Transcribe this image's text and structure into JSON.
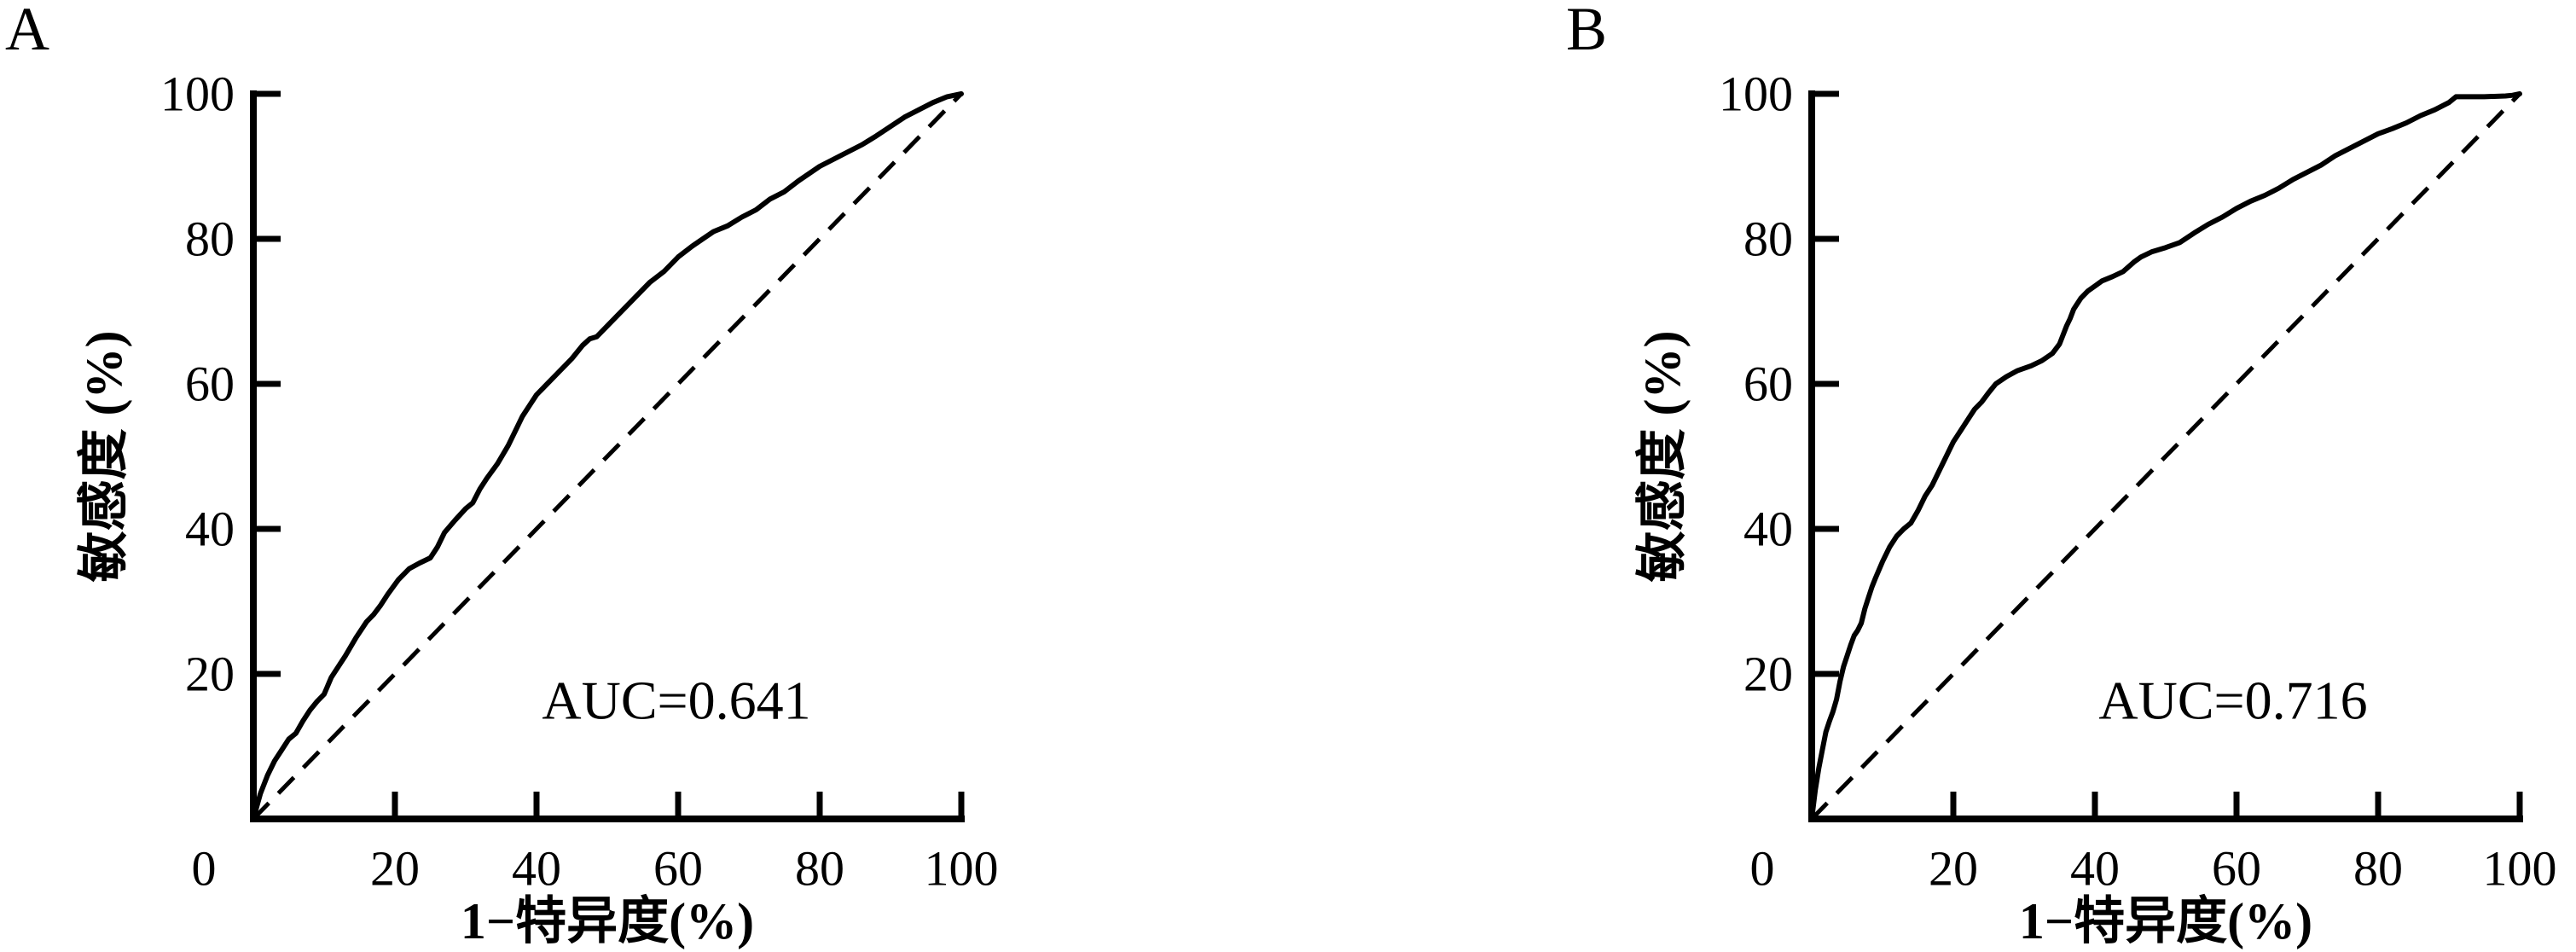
{
  "figure": {
    "background_color": "#ffffff",
    "ink_color": "#000000"
  },
  "chart_data": [
    {
      "type": "line",
      "panel_label": "A",
      "xlabel": "1−特异度(%)",
      "ylabel": "敏感度 (%)",
      "xlim": [
        0,
        100
      ],
      "ylim": [
        0,
        100
      ],
      "x_ticks": [
        0,
        20,
        40,
        60,
        80,
        100
      ],
      "y_ticks": [
        20,
        40,
        60,
        80,
        100
      ],
      "grid": false,
      "legend": "none",
      "annotations": [
        {
          "text": "AUC=0.641",
          "x": 59.8,
          "y": 16.4
        }
      ],
      "series": [
        {
          "name": "ROC curve",
          "style": "solid",
          "points": [
            [
              0,
              0
            ],
            [
              1,
              3.5
            ],
            [
              2,
              6
            ],
            [
              3,
              8
            ],
            [
              4,
              9.5
            ],
            [
              5,
              11
            ],
            [
              6,
              11.8
            ],
            [
              7,
              13.5
            ],
            [
              8,
              15
            ],
            [
              9,
              16.2
            ],
            [
              10,
              17.2
            ],
            [
              11,
              19.5
            ],
            [
              12,
              21
            ],
            [
              13,
              22.5
            ],
            [
              14.5,
              25
            ],
            [
              16,
              27.2
            ],
            [
              17,
              28.2
            ],
            [
              18,
              29.5
            ],
            [
              19,
              31
            ],
            [
              20.5,
              33
            ],
            [
              22,
              34.5
            ],
            [
              23.5,
              35.3
            ],
            [
              25,
              36
            ],
            [
              26,
              37.5
            ],
            [
              27,
              39.5
            ],
            [
              28.5,
              41.2
            ],
            [
              30,
              42.8
            ],
            [
              31,
              43.6
            ],
            [
              32,
              45.5
            ],
            [
              33,
              47
            ],
            [
              34.5,
              49
            ],
            [
              36,
              51.5
            ],
            [
              37,
              53.5
            ],
            [
              38,
              55.5
            ],
            [
              39,
              57
            ],
            [
              40,
              58.5
            ],
            [
              41.5,
              60
            ],
            [
              43,
              61.5
            ],
            [
              45,
              63.5
            ],
            [
              46.5,
              65.3
            ],
            [
              47.5,
              66.2
            ],
            [
              48.5,
              66.5
            ],
            [
              50,
              68
            ],
            [
              52,
              70
            ],
            [
              54,
              72
            ],
            [
              56,
              74
            ],
            [
              58,
              75.5
            ],
            [
              60,
              77.5
            ],
            [
              62,
              79
            ],
            [
              63.5,
              80
            ],
            [
              65,
              81
            ],
            [
              67,
              81.8
            ],
            [
              69,
              83
            ],
            [
              71,
              84
            ],
            [
              73,
              85.5
            ],
            [
              75,
              86.5
            ],
            [
              77,
              88
            ],
            [
              80,
              90
            ],
            [
              82,
              91
            ],
            [
              84,
              92
            ],
            [
              86,
              93
            ],
            [
              88,
              94.2
            ],
            [
              90,
              95.5
            ],
            [
              92,
              96.8
            ],
            [
              94,
              97.8
            ],
            [
              96,
              98.8
            ],
            [
              98,
              99.6
            ],
            [
              100,
              100
            ]
          ]
        },
        {
          "name": "Reference diagonal",
          "style": "dashed",
          "points": [
            [
              0,
              0
            ],
            [
              100,
              100
            ]
          ]
        }
      ]
    },
    {
      "type": "line",
      "panel_label": "B",
      "xlabel": "1−特异度(%)",
      "ylabel": "敏感度 (%)",
      "xlim": [
        0,
        100
      ],
      "ylim": [
        0,
        100
      ],
      "x_ticks": [
        0,
        20,
        40,
        60,
        80,
        100
      ],
      "y_ticks": [
        20,
        40,
        60,
        80,
        100
      ],
      "grid": false,
      "legend": "none",
      "annotations": [
        {
          "text": "AUC=0.716",
          "x": 59.4,
          "y": 16.4
        }
      ],
      "series": [
        {
          "name": "ROC curve",
          "style": "solid",
          "points": [
            [
              0,
              0
            ],
            [
              0.5,
              4
            ],
            [
              1,
              7
            ],
            [
              1.5,
              9.5
            ],
            [
              2,
              12
            ],
            [
              2.5,
              13.5
            ],
            [
              3,
              14.8
            ],
            [
              3.5,
              16.5
            ],
            [
              4,
              19
            ],
            [
              4.5,
              21
            ],
            [
              5,
              22.5
            ],
            [
              5.5,
              24
            ],
            [
              6,
              25.3
            ],
            [
              6.5,
              26
            ],
            [
              7,
              27
            ],
            [
              7.5,
              29
            ],
            [
              8,
              30.5
            ],
            [
              8.5,
              32
            ],
            [
              9,
              33.2
            ],
            [
              10,
              35.5
            ],
            [
              11,
              37.5
            ],
            [
              12,
              39
            ],
            [
              13,
              40
            ],
            [
              14,
              40.8
            ],
            [
              15,
              42.5
            ],
            [
              16,
              44.5
            ],
            [
              17,
              46
            ],
            [
              18,
              48
            ],
            [
              19,
              50
            ],
            [
              20,
              52
            ],
            [
              21,
              53.5
            ],
            [
              22,
              55
            ],
            [
              23,
              56.5
            ],
            [
              24,
              57.5
            ],
            [
              25,
              58.8
            ],
            [
              26,
              60
            ],
            [
              27.5,
              61
            ],
            [
              29,
              61.8
            ],
            [
              31,
              62.5
            ],
            [
              32.5,
              63.2
            ],
            [
              34,
              64.2
            ],
            [
              35,
              65.5
            ],
            [
              36,
              68
            ],
            [
              36.5,
              69
            ],
            [
              37,
              70.3
            ],
            [
              38,
              71.8
            ],
            [
              39,
              72.8
            ],
            [
              40,
              73.5
            ],
            [
              41,
              74.2
            ],
            [
              42.5,
              74.8
            ],
            [
              44,
              75.5
            ],
            [
              45.5,
              76.8
            ],
            [
              46.5,
              77.5
            ],
            [
              48,
              78.2
            ],
            [
              50,
              78.8
            ],
            [
              52,
              79.5
            ],
            [
              54,
              80.8
            ],
            [
              56,
              82
            ],
            [
              58,
              83
            ],
            [
              60,
              84.2
            ],
            [
              62,
              85.2
            ],
            [
              64,
              86
            ],
            [
              66,
              87
            ],
            [
              68,
              88.2
            ],
            [
              70,
              89.2
            ],
            [
              72,
              90.2
            ],
            [
              74,
              91.5
            ],
            [
              76,
              92.5
            ],
            [
              78,
              93.5
            ],
            [
              80,
              94.5
            ],
            [
              82,
              95.2
            ],
            [
              84,
              96
            ],
            [
              86,
              97
            ],
            [
              88,
              97.8
            ],
            [
              90,
              98.8
            ],
            [
              91,
              99.6
            ],
            [
              95,
              99.6
            ],
            [
              98,
              99.7
            ],
            [
              99,
              99.8
            ],
            [
              100,
              100
            ]
          ]
        },
        {
          "name": "Reference diagonal",
          "style": "dashed",
          "points": [
            [
              0,
              0
            ],
            [
              100,
              100
            ]
          ]
        }
      ]
    }
  ]
}
